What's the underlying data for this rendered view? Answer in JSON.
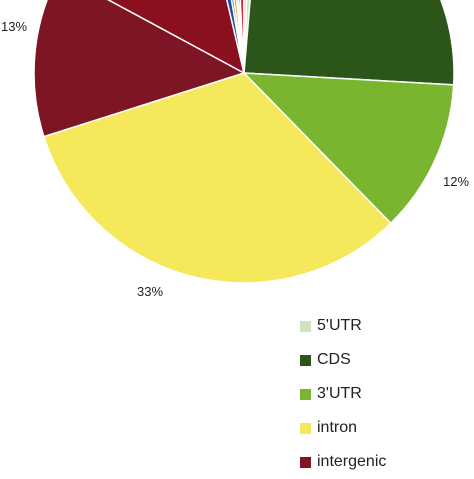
{
  "chart_data": {
    "type": "pie",
    "slices": [
      {
        "name": "5'UTR",
        "value": 0.8,
        "color": "#cfe3bd",
        "label": ""
      },
      {
        "name": "CDS",
        "value": 25,
        "color": "#2c5519",
        "label": ""
      },
      {
        "name": "3'UTR",
        "value": 12,
        "color": "#7ab530",
        "label": "12%"
      },
      {
        "name": "intron",
        "value": 33,
        "color": "#f5e85a",
        "label": "33%"
      },
      {
        "name": "intergenic",
        "value": 13,
        "color": "#7d1525",
        "label": "13%"
      },
      {
        "name": "",
        "value": 13.7,
        "color": "#8a1020",
        "label": ""
      },
      {
        "name": "",
        "value": 1.0,
        "color": "#1f4e95",
        "label": ""
      },
      {
        "name": "",
        "value": 0.5,
        "color": "#2c5aa8",
        "label": ""
      },
      {
        "name": "",
        "value": 0.6,
        "color": "#f0a020",
        "label": ""
      },
      {
        "name": "",
        "value": 0.4,
        "color": "#5fc2e0",
        "label": ""
      },
      {
        "name": "",
        "value": 0.4,
        "color": "#6a2a8a",
        "label": ""
      },
      {
        "name": "",
        "value": 0.8,
        "color": "#e8202a",
        "label": ""
      },
      {
        "name": "",
        "value": 0.6,
        "color": "#cfe3bd",
        "label": ""
      }
    ],
    "legend": {
      "placement": "bottom-right",
      "items": [
        "5'UTR",
        "CDS",
        "3'UTR",
        "intron",
        "intergenic"
      ]
    }
  },
  "legend_items": [
    {
      "label": "5'UTR",
      "color": "#cfe3bd"
    },
    {
      "label": "CDS",
      "color": "#2c5519"
    },
    {
      "label": "3'UTR",
      "color": "#7ab530"
    },
    {
      "label": "intron",
      "color": "#f5e85a"
    },
    {
      "label": "intergenic",
      "color": "#7d1525"
    }
  ]
}
